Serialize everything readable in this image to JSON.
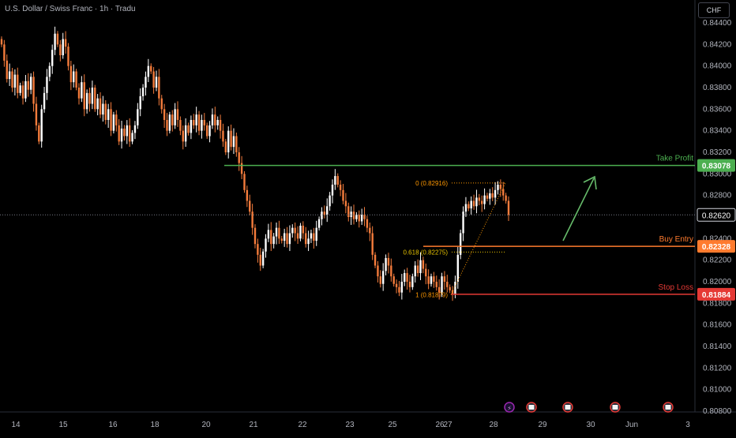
{
  "header": {
    "symbol_title": "U.S. Dollar / Swiss Franc · 1h · Tradu",
    "currency": "CHF"
  },
  "chart_data": {
    "type": "candlestick",
    "ylim": [
      0.808,
      0.845
    ],
    "y_ticks": [
      "0.84400",
      "0.84200",
      "0.84000",
      "0.83800",
      "0.83600",
      "0.83400",
      "0.83200",
      "0.83000",
      "0.82800",
      "0.82600",
      "0.82400",
      "0.82200",
      "0.82000",
      "0.81800",
      "0.81600",
      "0.81400",
      "0.81200",
      "0.81000",
      "0.80800"
    ],
    "x_ticks": [
      "14",
      "15",
      "16",
      "18",
      "20",
      "21",
      "22",
      "23",
      "25",
      "26",
      "27",
      "28",
      "29",
      "30",
      "Jun",
      "3"
    ],
    "current_price": "0.82620",
    "levels": [
      {
        "label": "Take Profit",
        "value": 0.83078,
        "value_label": "0.83078",
        "color": "#4caf50"
      },
      {
        "label": "Buy Entry",
        "value": 0.82328,
        "value_label": "0.82328",
        "color": "#ff7b2e"
      },
      {
        "label": "Stop Loss",
        "value": 0.81884,
        "value_label": "0.81884",
        "color": "#e53935"
      }
    ],
    "fibonacci": [
      {
        "label": "0 (0.82916)",
        "value": 0.82916,
        "color": "#ff9800"
      },
      {
        "label": "0.618 (0.82275)",
        "value": 0.82275,
        "color": "#e6c200"
      },
      {
        "label": "1 (0.81879)",
        "value": 0.81879,
        "color": "#ff9800"
      }
    ],
    "closes": [
      0.842,
      0.8405,
      0.8388,
      0.8395,
      0.838,
      0.8392,
      0.8375,
      0.8382,
      0.837,
      0.8386,
      0.8378,
      0.839,
      0.8365,
      0.8345,
      0.833,
      0.836,
      0.8375,
      0.839,
      0.84,
      0.8415,
      0.843,
      0.842,
      0.841,
      0.8425,
      0.8418,
      0.84,
      0.8385,
      0.8395,
      0.838,
      0.837,
      0.8385,
      0.836,
      0.8375,
      0.8365,
      0.838,
      0.836,
      0.837,
      0.8355,
      0.8365,
      0.835,
      0.836,
      0.834,
      0.8355,
      0.8345,
      0.833,
      0.8342,
      0.8335,
      0.8345,
      0.833,
      0.8338,
      0.8345,
      0.836,
      0.8372,
      0.838,
      0.839,
      0.84,
      0.8395,
      0.838,
      0.839,
      0.837,
      0.836,
      0.835,
      0.834,
      0.8355,
      0.8345,
      0.836,
      0.835,
      0.834,
      0.833,
      0.8345,
      0.8338,
      0.835,
      0.8345,
      0.8355,
      0.834,
      0.835,
      0.8345,
      0.8335,
      0.8345,
      0.8355,
      0.8345,
      0.835,
      0.834,
      0.833,
      0.832,
      0.834,
      0.8325,
      0.8335,
      0.832,
      0.831,
      0.83,
      0.8285,
      0.8275,
      0.8265,
      0.825,
      0.8235,
      0.8225,
      0.8215,
      0.8228,
      0.824,
      0.8248,
      0.8235,
      0.8242,
      0.825,
      0.824,
      0.8238,
      0.8245,
      0.8235,
      0.8245,
      0.825,
      0.8245,
      0.824,
      0.8252,
      0.8245,
      0.8235,
      0.824,
      0.8245,
      0.8238,
      0.825,
      0.8258,
      0.8265,
      0.8262,
      0.827,
      0.828,
      0.829,
      0.8298,
      0.829,
      0.8285,
      0.8275,
      0.827,
      0.826,
      0.8265,
      0.8258,
      0.8262,
      0.8256,
      0.8262,
      0.8258,
      0.825,
      0.8245,
      0.8225,
      0.8215,
      0.8205,
      0.8198,
      0.821,
      0.8222,
      0.8215,
      0.8205,
      0.8198,
      0.8195,
      0.819,
      0.82,
      0.8208,
      0.82,
      0.8195,
      0.8205,
      0.8215,
      0.8208,
      0.822,
      0.8212,
      0.8205,
      0.8198,
      0.8205,
      0.82,
      0.8195,
      0.819,
      0.8205,
      0.82,
      0.8195,
      0.8192,
      0.8188,
      0.82,
      0.8225,
      0.8245,
      0.8265,
      0.8272,
      0.8268,
      0.8275,
      0.827,
      0.8278,
      0.8275,
      0.8272,
      0.828,
      0.8277,
      0.8282,
      0.8278,
      0.8285,
      0.829,
      0.8286,
      0.828,
      0.8275,
      0.8262
    ]
  }
}
